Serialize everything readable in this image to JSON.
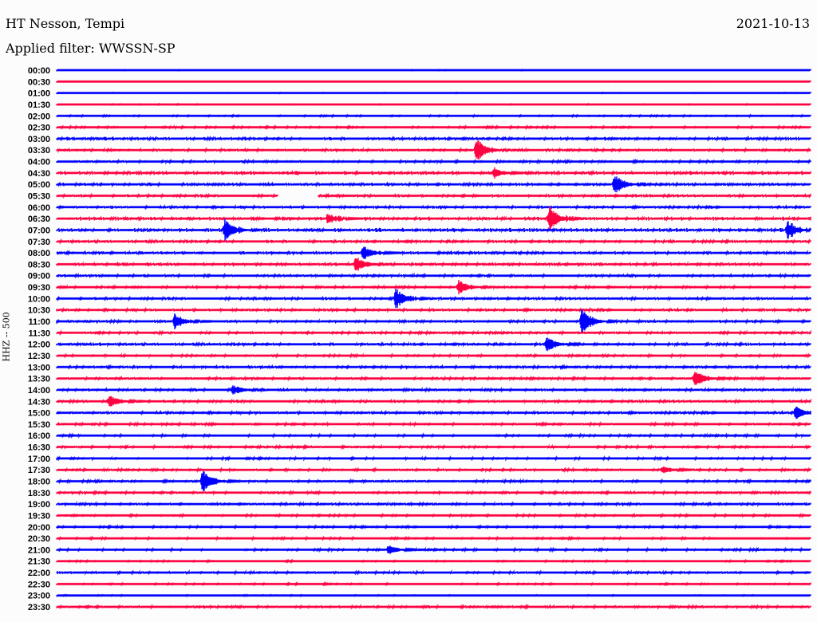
{
  "header": {
    "station": "HT Nesson, Tempi",
    "filter": "Applied filter: WWSSN-SP",
    "date": "2021-10-13"
  },
  "chart_data": {
    "type": "line",
    "title": "HT Nesson, Tempi",
    "subtitle": "Applied filter: WWSSN-SP",
    "ylabel": "HHZ -- 500",
    "xlabel": "",
    "row_minutes": 30,
    "colors": [
      "#0000ff",
      "#ff0040"
    ],
    "rows": [
      "00:00",
      "00:30",
      "01:00",
      "01:30",
      "02:00",
      "02:30",
      "03:00",
      "03:30",
      "04:00",
      "04:30",
      "05:00",
      "05:30",
      "06:00",
      "06:30",
      "07:00",
      "07:30",
      "08:00",
      "08:30",
      "09:00",
      "09:30",
      "10:00",
      "10:30",
      "11:00",
      "11:30",
      "12:00",
      "12:30",
      "13:00",
      "13:30",
      "14:00",
      "14:30",
      "15:00",
      "15:30",
      "16:00",
      "16:30",
      "17:00",
      "17:30",
      "18:00",
      "18:30",
      "19:00",
      "19:30",
      "20:00",
      "20:30",
      "21:00",
      "21:30",
      "22:00",
      "22:30",
      "23:00",
      "23:30"
    ],
    "noise": [
      0.05,
      0.02,
      0.05,
      0.08,
      0.2,
      0.3,
      0.6,
      0.5,
      0.4,
      0.7,
      0.6,
      0.55,
      0.5,
      0.7,
      0.7,
      0.55,
      0.6,
      0.6,
      0.5,
      0.4,
      0.55,
      0.5,
      0.5,
      0.45,
      0.55,
      0.4,
      0.5,
      0.45,
      0.5,
      0.55,
      0.5,
      0.4,
      0.35,
      0.4,
      0.35,
      0.4,
      0.4,
      0.45,
      0.5,
      0.3,
      0.3,
      0.3,
      0.35,
      0.2,
      0.45,
      0.2,
      0.1,
      0.5
    ],
    "events": [
      {
        "row": "03:30",
        "minute": 16.7,
        "amplitude": 1.0
      },
      {
        "row": "04:30",
        "minute": 17.4,
        "amplitude": 0.4
      },
      {
        "row": "05:00",
        "minute": 22.2,
        "amplitude": 0.8
      },
      {
        "row": "06:30",
        "minute": 10.8,
        "amplitude": 0.35
      },
      {
        "row": "06:30",
        "minute": 19.6,
        "amplitude": 1.0
      },
      {
        "row": "07:00",
        "minute": 6.7,
        "amplitude": 0.9
      },
      {
        "row": "07:00",
        "minute": 29.1,
        "amplitude": 0.7
      },
      {
        "row": "08:00",
        "minute": 12.2,
        "amplitude": 0.6
      },
      {
        "row": "08:30",
        "minute": 11.9,
        "amplitude": 0.6
      },
      {
        "row": "09:30",
        "minute": 16.0,
        "amplitude": 0.6
      },
      {
        "row": "10:00",
        "minute": 13.5,
        "amplitude": 0.8
      },
      {
        "row": "11:00",
        "minute": 4.7,
        "amplitude": 0.6
      },
      {
        "row": "11:00",
        "minute": 20.9,
        "amplitude": 1.1
      },
      {
        "row": "12:00",
        "minute": 19.5,
        "amplitude": 0.6
      },
      {
        "row": "13:30",
        "minute": 25.4,
        "amplitude": 0.7
      },
      {
        "row": "14:00",
        "minute": 7.0,
        "amplitude": 0.4
      },
      {
        "row": "14:30",
        "minute": 2.1,
        "amplitude": 0.5
      },
      {
        "row": "15:00",
        "minute": 29.4,
        "amplitude": 0.5
      },
      {
        "row": "17:30",
        "minute": 24.1,
        "amplitude": 0.3
      },
      {
        "row": "18:00",
        "minute": 5.8,
        "amplitude": 1.0
      },
      {
        "row": "21:00",
        "minute": 13.2,
        "amplitude": 0.4
      }
    ],
    "gaps": [
      {
        "row": "05:30",
        "start_minute": 8.8,
        "end_minute": 10.4
      }
    ]
  }
}
